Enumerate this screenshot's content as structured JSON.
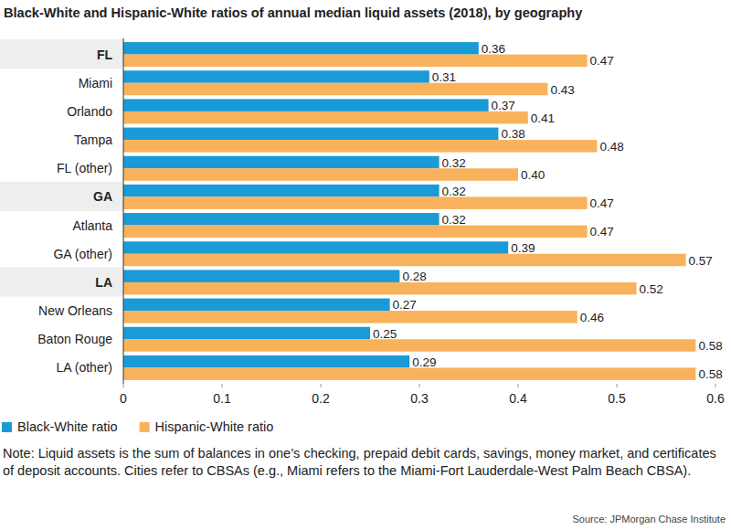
{
  "chart_data": {
    "type": "bar",
    "orientation": "horizontal",
    "title": "Black-White and Hispanic-White ratios of annual median liquid assets (2018), by geography",
    "categories": [
      "FL",
      "Miami",
      "Orlando",
      "Tampa",
      "FL (other)",
      "GA",
      "Atlanta",
      "GA (other)",
      "LA",
      "New Orleans",
      "Baton Rouge",
      "LA (other)"
    ],
    "series": [
      {
        "name": "Black-White ratio",
        "color": "#1a9ad6",
        "values": [
          0.36,
          0.31,
          0.37,
          0.38,
          0.32,
          0.32,
          0.32,
          0.39,
          0.28,
          0.27,
          0.25,
          0.29
        ],
        "value_labels": [
          "0.36",
          "0.31",
          "0.37",
          "0.38",
          "0.32",
          "0.32",
          "0.32",
          "0.39",
          "0.28",
          "0.27",
          "0.25",
          "0.29"
        ]
      },
      {
        "name": "Hispanic-White ratio",
        "color": "#f9b25c",
        "values": [
          0.47,
          0.43,
          0.41,
          0.48,
          0.4,
          0.47,
          0.47,
          0.57,
          0.52,
          0.46,
          0.58,
          0.58
        ],
        "value_labels": [
          "0.47",
          "0.43",
          "0.41",
          "0.48",
          "0.40",
          "0.47",
          "0.47",
          "0.57",
          "0.52",
          "0.46",
          "0.58",
          "0.58"
        ]
      }
    ],
    "xlim": [
      0,
      0.6
    ],
    "xticks": [
      0,
      0.1,
      0.2,
      0.3,
      0.4,
      0.5,
      0.6
    ],
    "grid": false,
    "data_labels": true,
    "legend": "bottom-left",
    "note": "Note: Liquid assets is the sum of balances in one’s checking, prepaid debit cards, savings, money market, and certificates of deposit accounts. Cities refer to CBSAs (e.g., Miami refers to the Miami-Fort Lauderdale-West Palm Beach CBSA).",
    "source": "Source: JPMorgan Chase Institute"
  }
}
